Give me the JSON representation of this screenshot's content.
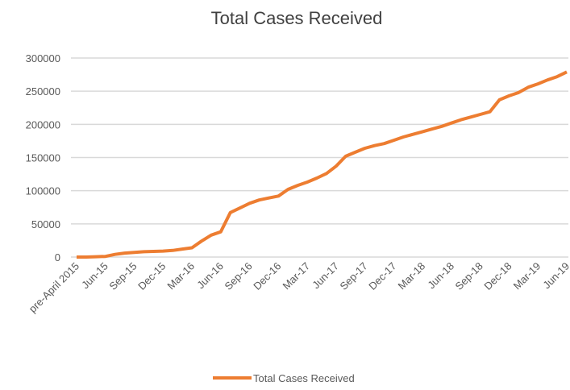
{
  "chart_data": {
    "type": "line",
    "title": "Total Cases Received",
    "categories": [
      "pre-April 2015",
      null,
      null,
      "Jun-15",
      null,
      null,
      "Sep-15",
      null,
      null,
      "Dec-15",
      null,
      null,
      "Mar-16",
      null,
      null,
      "Jun-16",
      null,
      null,
      "Sep-16",
      null,
      null,
      "Dec-16",
      null,
      null,
      "Mar-17",
      null,
      null,
      "Jun-17",
      null,
      null,
      "Sep-17",
      null,
      null,
      "Dec-17",
      null,
      null,
      "Mar-18",
      null,
      null,
      "Jun-18",
      null,
      null,
      "Sep-18",
      null,
      null,
      "Dec-18",
      null,
      null,
      "Mar-19",
      null,
      null,
      "Jun-19"
    ],
    "series": [
      {
        "name": "Total Cases Received",
        "color": "#ed7d31",
        "values": [
          0,
          0,
          500,
          1000,
          4000,
          6000,
          7000,
          8000,
          8500,
          9000,
          10000,
          12000,
          14000,
          24000,
          33000,
          38000,
          67000,
          74000,
          81000,
          86000,
          89000,
          92000,
          102000,
          108000,
          113000,
          119000,
          126000,
          137000,
          152000,
          158000,
          164000,
          168000,
          171000,
          176000,
          181000,
          185000,
          189000,
          193000,
          197000,
          202000,
          207000,
          211000,
          215000,
          219000,
          237000,
          243000,
          248000,
          256000,
          261000,
          267000,
          272000,
          279000
        ]
      }
    ],
    "ylim": [
      0,
      300000
    ],
    "yticks": [
      0,
      50000,
      100000,
      150000,
      200000,
      250000,
      300000
    ],
    "grid": true,
    "legend": "bottom"
  }
}
